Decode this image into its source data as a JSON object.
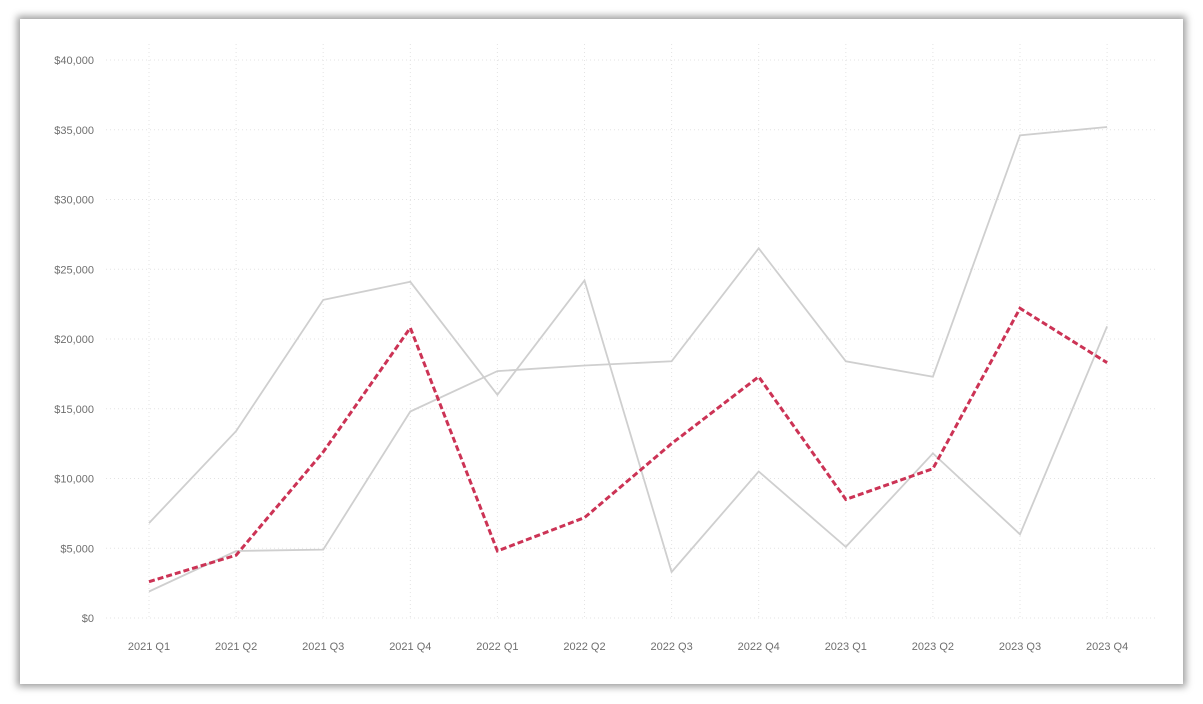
{
  "chart_data": {
    "type": "line",
    "title": "",
    "xlabel": "",
    "ylabel": "",
    "categories": [
      "2021 Q1",
      "2021 Q2",
      "2021 Q3",
      "2021 Q4",
      "2022 Q1",
      "2022 Q2",
      "2022 Q3",
      "2022 Q4",
      "2023 Q1",
      "2023 Q2",
      "2023 Q3",
      "2023 Q4"
    ],
    "yticks": [
      "$0",
      "$5,000",
      "$10,000",
      "$15,000",
      "$20,000",
      "$25,000",
      "$30,000",
      "$35,000",
      "$40,000"
    ],
    "ylim": [
      0,
      40000
    ],
    "grid": true,
    "legend": "none",
    "series": [
      {
        "values": [
          6800,
          13400,
          22800,
          24100,
          16000,
          24200,
          3300,
          10500,
          5100,
          11800,
          6000,
          20900
        ],
        "color": "#cfcfcf",
        "style": "solid"
      },
      {
        "values": [
          1900,
          4800,
          4900,
          14800,
          17700,
          18100,
          18400,
          26500,
          18400,
          17300,
          34600,
          35200
        ],
        "color": "#cfcfcf",
        "style": "solid"
      },
      {
        "values": [
          2600,
          4500,
          11900,
          20800,
          4800,
          7200,
          12500,
          17300,
          8500,
          10700,
          22200,
          18300
        ],
        "color": "#cc3355",
        "style": "dashed"
      }
    ]
  }
}
